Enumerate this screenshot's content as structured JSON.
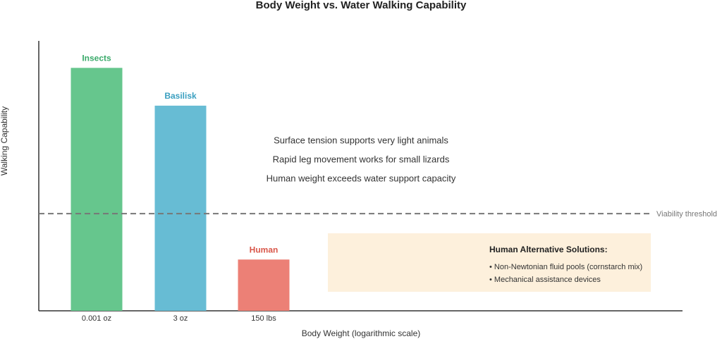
{
  "chart_data": {
    "type": "bar",
    "title": "Body Weight vs. Water Walking Capability",
    "x_label": "Body Weight (logarithmic scale)",
    "y_label": "Walking Capability",
    "categories": [
      "0.001 oz",
      "3 oz",
      "150 lbs"
    ],
    "bar_labels": [
      "Insects",
      "Basilisk",
      "Human"
    ],
    "values": [
      90,
      76,
      19
    ],
    "colors": [
      "#66c68d",
      "#67bcd4",
      "#ec8076"
    ],
    "label_colors": [
      "#3aaa6a",
      "#3a9fc0",
      "#d9574a"
    ],
    "ylim": [
      0,
      100
    ],
    "threshold": {
      "value": 36,
      "label": "Viability threshold",
      "color": "#777777"
    },
    "annotations": [
      "Surface tension supports very light animals",
      "Rapid leg movement works for small lizards",
      "Human weight exceeds water support capacity"
    ],
    "info_box": {
      "title": "Human Alternative Solutions:",
      "items": [
        "• Non-Newtonian fluid pools (cornstarch mix)",
        "• Mechanical assistance devices"
      ]
    }
  }
}
